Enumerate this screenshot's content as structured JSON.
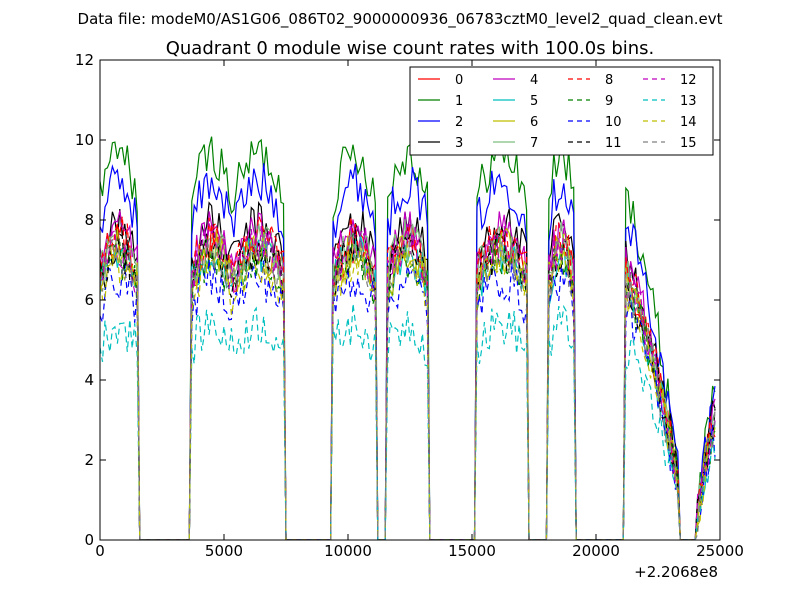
{
  "chart_data": {
    "type": "line",
    "suptitle": "Data file: modeM0/AS1G06_086T02_9000000936_06783cztM0_level2_quad_clean.evt",
    "title": "Quadrant 0 module wise count rates with 100.0s bins.",
    "xlabel": "",
    "ylabel": "",
    "x_offset_label": "+2.2068e8",
    "xlim": [
      0,
      25000
    ],
    "ylim": [
      0,
      12
    ],
    "x_ticks": [
      0,
      5000,
      10000,
      15000,
      20000,
      25000
    ],
    "x_tick_labels": [
      "0",
      "5000",
      "10000",
      "15000",
      "20000",
      "25000"
    ],
    "y_ticks": [
      0,
      2,
      4,
      6,
      8,
      10,
      12
    ],
    "y_tick_labels": [
      "0",
      "2",
      "4",
      "6",
      "8",
      "10",
      "12"
    ],
    "grid": false,
    "legend_position": "top-right",
    "legend_columns": 4,
    "time_binning_s": 100,
    "segments": [
      {
        "start": 0,
        "end": 1500
      },
      {
        "start": 3700,
        "end": 5300
      },
      {
        "start": 5400,
        "end": 7400
      },
      {
        "start": 9400,
        "end": 11100
      },
      {
        "start": 11600,
        "end": 13200
      },
      {
        "start": 15200,
        "end": 17200
      },
      {
        "start": 18100,
        "end": 19100
      },
      {
        "start": 21200,
        "end": 23300
      },
      {
        "start": 24100,
        "end": 24800
      }
    ],
    "series": [
      {
        "name": "0",
        "color": "#ff0000",
        "dash": "solid",
        "mean_level": 7.1
      },
      {
        "name": "1",
        "color": "#008000",
        "dash": "solid",
        "mean_level": 9.3
      },
      {
        "name": "2",
        "color": "#0000ff",
        "dash": "solid",
        "mean_level": 8.6
      },
      {
        "name": "3",
        "color": "#000000",
        "dash": "solid",
        "mean_level": 7.6
      },
      {
        "name": "4",
        "color": "#bf00bf",
        "dash": "solid",
        "mean_level": 7.4
      },
      {
        "name": "5",
        "color": "#00bfbf",
        "dash": "solid",
        "mean_level": 6.9
      },
      {
        "name": "6",
        "color": "#bfbf00",
        "dash": "solid",
        "mean_level": 7.0
      },
      {
        "name": "7",
        "color": "#7fbf7f",
        "dash": "solid",
        "mean_level": 7.2
      },
      {
        "name": "8",
        "color": "#ff0000",
        "dash": "dashed",
        "mean_level": 7.3
      },
      {
        "name": "9",
        "color": "#008000",
        "dash": "dashed",
        "mean_level": 6.8
      },
      {
        "name": "10",
        "color": "#0000ff",
        "dash": "dashed",
        "mean_level": 6.3
      },
      {
        "name": "11",
        "color": "#000000",
        "dash": "dashed",
        "mean_level": 7.0
      },
      {
        "name": "12",
        "color": "#bf00bf",
        "dash": "dashed",
        "mean_level": 7.1
      },
      {
        "name": "13",
        "color": "#00bfbf",
        "dash": "dashed",
        "mean_level": 5.2
      },
      {
        "name": "14",
        "color": "#bfbf00",
        "dash": "dashed",
        "mean_level": 6.7
      },
      {
        "name": "15",
        "color": "#808080",
        "dash": "dashed",
        "mean_level": 6.9
      }
    ]
  }
}
